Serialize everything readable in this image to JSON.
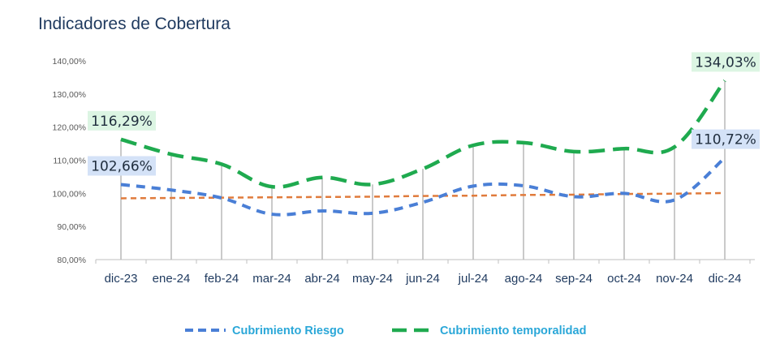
{
  "title": "Indicadores de Cobertura",
  "chart_data": {
    "type": "line",
    "title": "Indicadores de Cobertura",
    "categories": [
      "dic-23",
      "ene-24",
      "feb-24",
      "mar-24",
      "abr-24",
      "may-24",
      "jun-24",
      "jul-24",
      "ago-24",
      "sep-24",
      "oct-24",
      "nov-24",
      "dic-24"
    ],
    "ylim": [
      80,
      140
    ],
    "yticks": [
      "80,00%",
      "90,00%",
      "100,00%",
      "110,00%",
      "120,00%",
      "130,00%",
      "140,00%"
    ],
    "ytick_values": [
      80,
      90,
      100,
      110,
      120,
      130,
      140
    ],
    "series": [
      {
        "name": "Cubrimiento Riesgo",
        "color": "#4a7fd6",
        "style": "dashed",
        "values": [
          102.66,
          101.0,
          98.6,
          93.7,
          94.7,
          94.0,
          97.3,
          102.2,
          102.3,
          99.0,
          100.0,
          98.0,
          110.72
        ]
      },
      {
        "name": "Cubrimiento temporalidad",
        "color": "#1faa4f",
        "style": "dashed",
        "values": [
          116.29,
          111.8,
          108.8,
          102.0,
          104.8,
          102.7,
          107.4,
          114.5,
          115.3,
          112.6,
          113.5,
          114.0,
          134.03
        ]
      },
      {
        "name": "",
        "color": "#e07b3c",
        "style": "dashed",
        "values": [
          98.5,
          98.6,
          98.7,
          98.8,
          98.9,
          99.0,
          99.2,
          99.3,
          99.5,
          99.6,
          99.8,
          99.9,
          100.1
        ]
      }
    ],
    "data_labels": [
      {
        "series": 0,
        "index": 0,
        "text": "102,66%",
        "bg": "#d4e2f7"
      },
      {
        "series": 1,
        "index": 0,
        "text": "116,29%",
        "bg": "#dcf5e3"
      },
      {
        "series": 0,
        "index": 12,
        "text": "110,72%",
        "bg": "#d4e2f7"
      },
      {
        "series": 1,
        "index": 12,
        "text": "134,03%",
        "bg": "#dcf5e3"
      }
    ],
    "legend": {
      "position": "bottom",
      "items": [
        {
          "label": "Cubrimiento Riesgo",
          "color": "#4a7fd6"
        },
        {
          "label": "Cubrimiento temporalidad",
          "color": "#1faa4f"
        }
      ]
    },
    "grid": false
  }
}
